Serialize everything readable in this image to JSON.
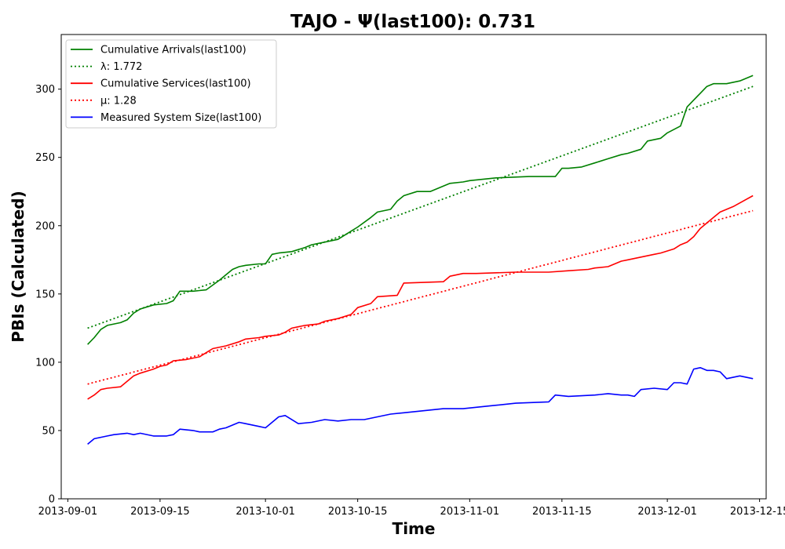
{
  "chart_data": {
    "type": "line",
    "title": "TAJO -  Ψ(last100): 0.731",
    "xlabel": "Time",
    "ylabel": "PBIs (Calculated)",
    "ylim": [
      0,
      340
    ],
    "xlim": [
      "2013-08-31",
      "2013-12-16"
    ],
    "y_ticks": [
      0,
      50,
      100,
      150,
      200,
      250,
      300
    ],
    "x_ticks": [
      "2013-09-01",
      "2013-09-15",
      "2013-10-01",
      "2013-10-15",
      "2013-11-01",
      "2013-11-15",
      "2013-12-01",
      "2013-12-15"
    ],
    "legend_position": "upper-left",
    "series": [
      {
        "name": "Cumulative Arrivals(last100)",
        "color": "#008000",
        "style": "solid",
        "x": [
          "2013-09-04",
          "2013-09-05",
          "2013-09-06",
          "2013-09-07",
          "2013-09-08",
          "2013-09-09",
          "2013-09-10",
          "2013-09-11",
          "2013-09-12",
          "2013-09-14",
          "2013-09-16",
          "2013-09-17",
          "2013-09-18",
          "2013-09-20",
          "2013-09-22",
          "2013-09-24",
          "2013-09-25",
          "2013-09-26",
          "2013-09-27",
          "2013-09-28",
          "2013-09-30",
          "2013-10-01",
          "2013-10-02",
          "2013-10-03",
          "2013-10-05",
          "2013-10-07",
          "2013-10-08",
          "2013-10-10",
          "2013-10-12",
          "2013-10-14",
          "2013-10-15",
          "2013-10-17",
          "2013-10-18",
          "2013-10-20",
          "2013-10-21",
          "2013-10-22",
          "2013-10-24",
          "2013-10-26",
          "2013-10-28",
          "2013-10-29",
          "2013-10-31",
          "2013-11-01",
          "2013-11-03",
          "2013-11-05",
          "2013-11-10",
          "2013-11-14",
          "2013-11-15",
          "2013-11-16",
          "2013-11-18",
          "2013-11-20",
          "2013-11-22",
          "2013-11-24",
          "2013-11-25",
          "2013-11-27",
          "2013-11-28",
          "2013-11-30",
          "2013-12-01",
          "2013-12-03",
          "2013-12-04",
          "2013-12-05",
          "2013-12-06",
          "2013-12-07",
          "2013-12-08",
          "2013-12-10",
          "2013-12-12",
          "2013-12-14"
        ],
        "values": [
          113,
          118,
          124,
          127,
          128,
          129,
          131,
          136,
          139,
          142,
          143,
          145,
          152,
          152,
          153,
          160,
          164,
          168,
          170,
          171,
          172,
          172,
          179,
          180,
          181,
          184,
          186,
          188,
          190,
          196,
          199,
          206,
          210,
          212,
          218,
          222,
          225,
          225,
          229,
          231,
          232,
          233,
          234,
          235,
          236,
          236,
          242,
          242,
          243,
          246,
          249,
          252,
          253,
          256,
          262,
          264,
          268,
          273,
          287,
          292,
          297,
          302,
          304,
          304,
          306,
          310
        ]
      },
      {
        "name": "λ: 1.772",
        "color": "#008000",
        "style": "dotted",
        "x": [
          "2013-09-04",
          "2013-12-14"
        ],
        "values": [
          125,
          302
        ]
      },
      {
        "name": "Cumulative Services(last100)",
        "color": "#ff0000",
        "style": "solid",
        "x": [
          "2013-09-04",
          "2013-09-05",
          "2013-09-06",
          "2013-09-07",
          "2013-09-09",
          "2013-09-10",
          "2013-09-11",
          "2013-09-12",
          "2013-09-14",
          "2013-09-15",
          "2013-09-16",
          "2013-09-17",
          "2013-09-19",
          "2013-09-21",
          "2013-09-22",
          "2013-09-23",
          "2013-09-25",
          "2013-09-27",
          "2013-09-28",
          "2013-09-30",
          "2013-10-01",
          "2013-10-03",
          "2013-10-04",
          "2013-10-05",
          "2013-10-07",
          "2013-10-09",
          "2013-10-10",
          "2013-10-12",
          "2013-10-14",
          "2013-10-15",
          "2013-10-17",
          "2013-10-18",
          "2013-10-21",
          "2013-10-22",
          "2013-10-28",
          "2013-10-29",
          "2013-10-31",
          "2013-11-02",
          "2013-11-08",
          "2013-11-13",
          "2013-11-16",
          "2013-11-19",
          "2013-11-20",
          "2013-11-22",
          "2013-11-24",
          "2013-11-25",
          "2013-11-27",
          "2013-11-29",
          "2013-11-30",
          "2013-12-02",
          "2013-12-03",
          "2013-12-04",
          "2013-12-05",
          "2013-12-06",
          "2013-12-08",
          "2013-12-09",
          "2013-12-11",
          "2013-12-14"
        ],
        "values": [
          73,
          76,
          80,
          81,
          82,
          86,
          90,
          92,
          95,
          97,
          98,
          101,
          102,
          104,
          107,
          110,
          112,
          115,
          117,
          118,
          119,
          120,
          122,
          125,
          127,
          128,
          130,
          132,
          135,
          140,
          143,
          148,
          149,
          158,
          159,
          163,
          165,
          165,
          166,
          166,
          167,
          168,
          169,
          170,
          174,
          175,
          177,
          179,
          180,
          183,
          186,
          188,
          192,
          198,
          206,
          210,
          214,
          222
        ]
      },
      {
        "name": "μ: 1.28",
        "color": "#ff0000",
        "style": "dotted",
        "x": [
          "2013-09-04",
          "2013-12-14"
        ],
        "values": [
          84,
          211
        ]
      },
      {
        "name": "Measured System Size(last100)",
        "color": "#0000ff",
        "style": "solid",
        "x": [
          "2013-09-04",
          "2013-09-05",
          "2013-09-06",
          "2013-09-07",
          "2013-09-08",
          "2013-09-10",
          "2013-09-11",
          "2013-09-12",
          "2013-09-14",
          "2013-09-16",
          "2013-09-17",
          "2013-09-18",
          "2013-09-20",
          "2013-09-21",
          "2013-09-23",
          "2013-09-24",
          "2013-09-25",
          "2013-09-26",
          "2013-09-27",
          "2013-09-28",
          "2013-09-30",
          "2013-10-01",
          "2013-10-02",
          "2013-10-03",
          "2013-10-04",
          "2013-10-06",
          "2013-10-08",
          "2013-10-10",
          "2013-10-12",
          "2013-10-14",
          "2013-10-16",
          "2013-10-18",
          "2013-10-20",
          "2013-10-22",
          "2013-10-24",
          "2013-10-26",
          "2013-10-28",
          "2013-10-31",
          "2013-11-04",
          "2013-11-08",
          "2013-11-13",
          "2013-11-14",
          "2013-11-16",
          "2013-11-20",
          "2013-11-22",
          "2013-11-24",
          "2013-11-25",
          "2013-11-26",
          "2013-11-27",
          "2013-11-29",
          "2013-12-01",
          "2013-12-02",
          "2013-12-03",
          "2013-12-04",
          "2013-12-05",
          "2013-12-06",
          "2013-12-07",
          "2013-12-08",
          "2013-12-09",
          "2013-12-10",
          "2013-12-12",
          "2013-12-14"
        ],
        "values": [
          40,
          44,
          45,
          46,
          47,
          48,
          47,
          48,
          46,
          46,
          47,
          51,
          50,
          49,
          49,
          51,
          52,
          54,
          56,
          55,
          53,
          52,
          56,
          60,
          61,
          55,
          56,
          58,
          57,
          58,
          58,
          60,
          62,
          63,
          64,
          65,
          66,
          66,
          68,
          70,
          71,
          76,
          75,
          76,
          77,
          76,
          76,
          75,
          80,
          81,
          80,
          85,
          85,
          84,
          95,
          96,
          94,
          94,
          93,
          88,
          90,
          88
        ]
      }
    ]
  }
}
